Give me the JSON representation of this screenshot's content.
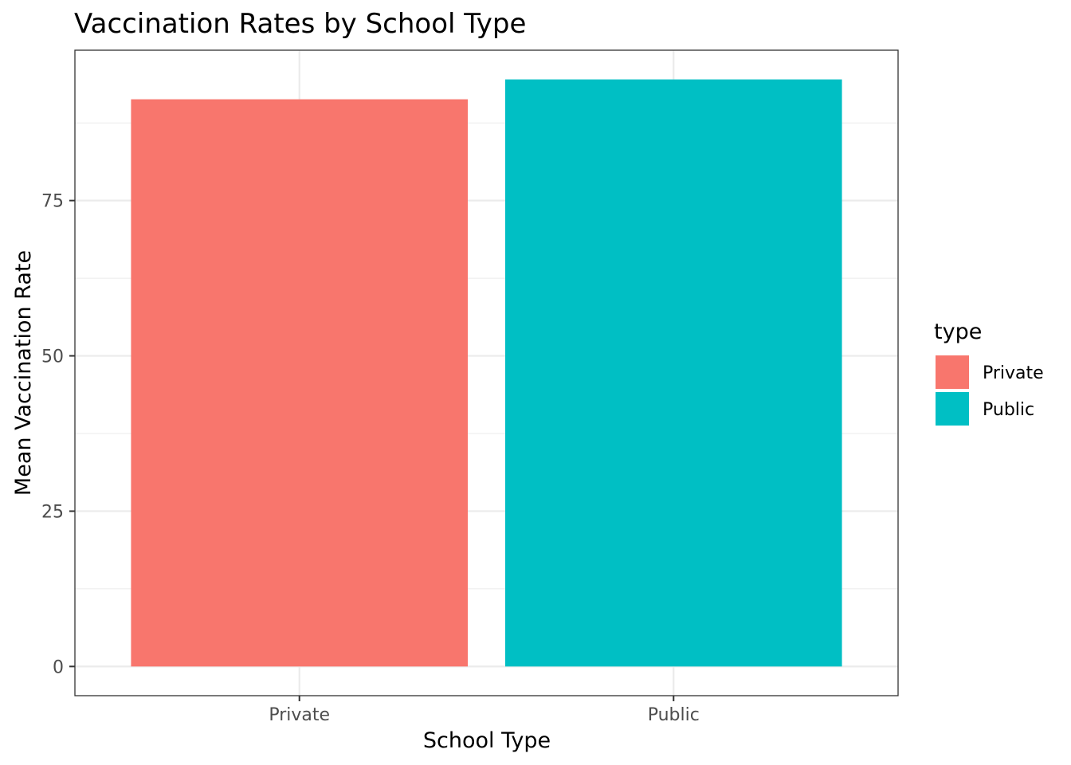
{
  "chart_data": {
    "type": "bar",
    "title": "Vaccination Rates by School Type",
    "xlabel": "School Type",
    "ylabel": "Mean Vaccination Rate",
    "categories": [
      "Private",
      "Public"
    ],
    "values": [
      91.3,
      94.5
    ],
    "colors": [
      "#F8766D",
      "#00BFC4"
    ],
    "ylim": [
      -4.7,
      99.2
    ],
    "yticks": [
      0,
      25,
      50,
      75
    ],
    "grid": true,
    "legend": {
      "title": "type",
      "position": "right",
      "entries": [
        "Private",
        "Public"
      ]
    }
  }
}
